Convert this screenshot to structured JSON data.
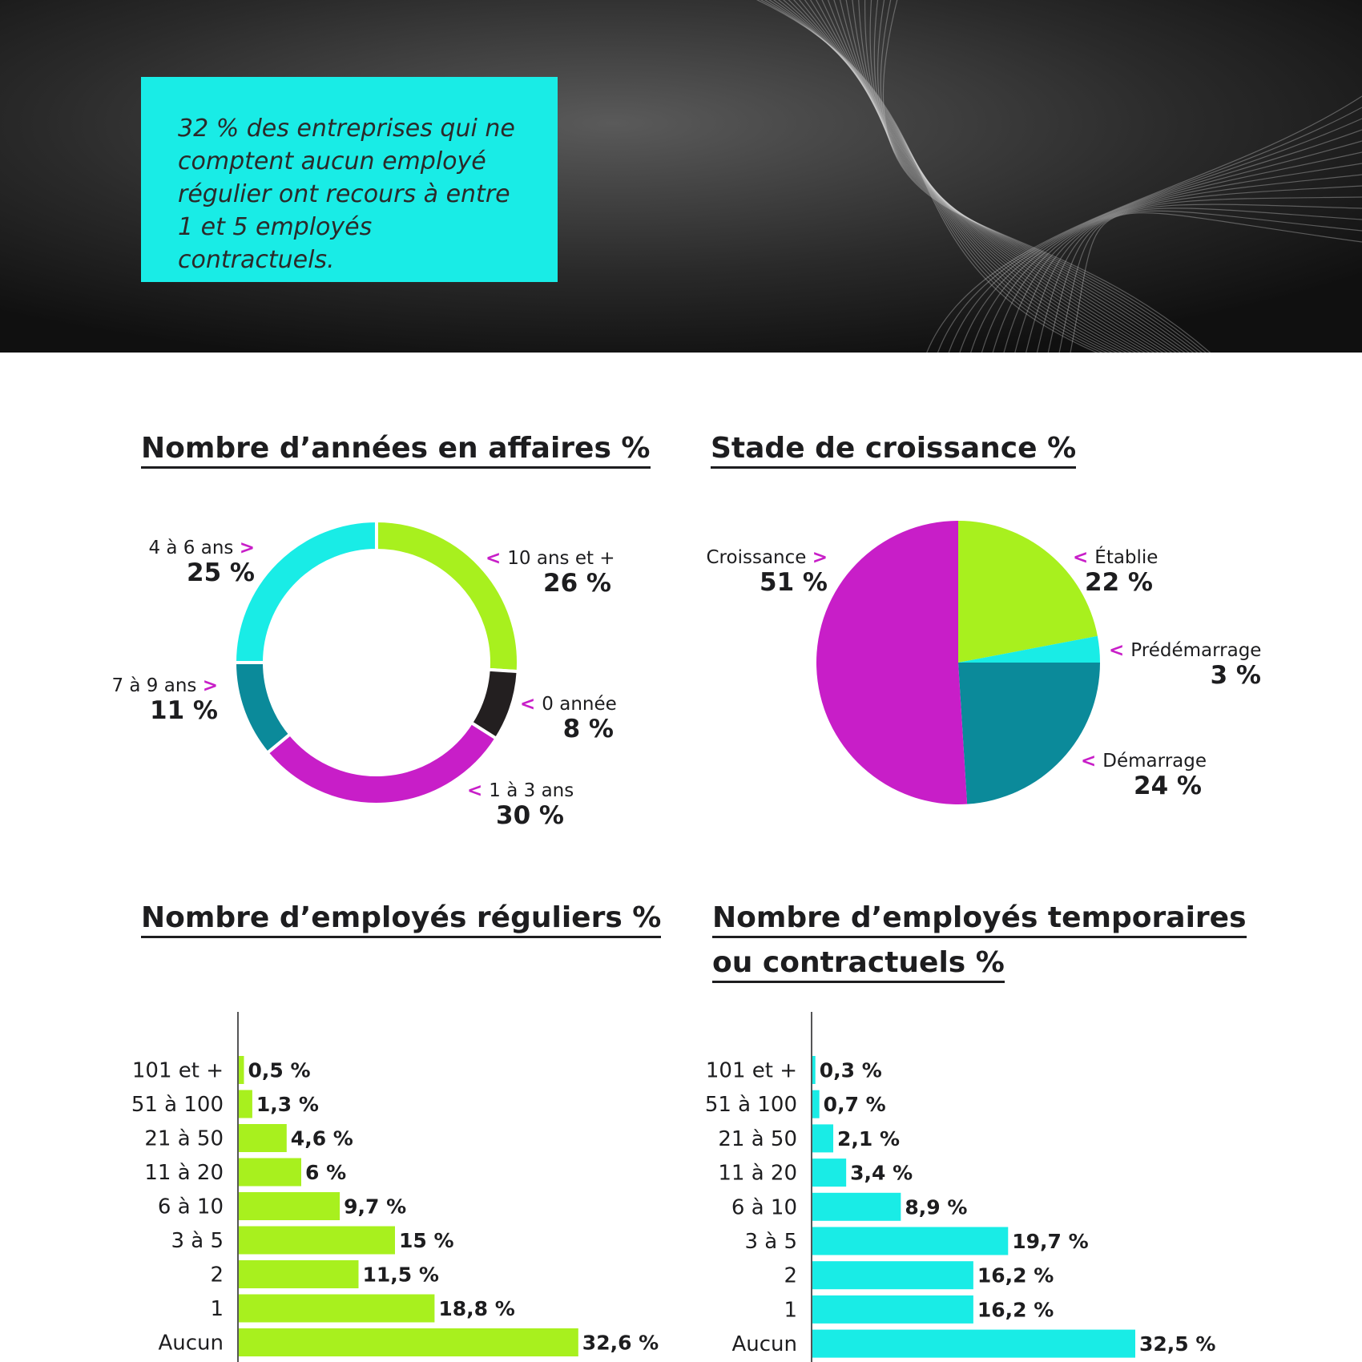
{
  "callout": {
    "text": "32 % des entreprises qui ne comptent aucun employé régulier ont recours à entre 1 et 5 employés contractuels.",
    "color": "#19ece6"
  },
  "colors": {
    "lime": "#a8f01e",
    "cyan": "#19ece6",
    "teal": "#0b8a9a",
    "magenta": "#c81ec8",
    "dark": "#231f20",
    "arrow": "#c81ec8"
  },
  "chart_data": [
    {
      "type": "pie",
      "variant": "donut",
      "title": "Nombre d’années en affaires %",
      "slices": [
        {
          "label": "10 ans et  +",
          "value": 26,
          "display": "26 %",
          "color": "#a8f01e"
        },
        {
          "label": "0 année",
          "value": 8,
          "display": "8 %",
          "color": "#231f20"
        },
        {
          "label": "1 à 3 ans",
          "value": 30,
          "display": "30 %",
          "color": "#c81ec8"
        },
        {
          "label": "7 à 9 ans",
          "value": 11,
          "display": "11 %",
          "color": "#0b8a9a"
        },
        {
          "label": "4 à 6 ans",
          "value": 25,
          "display": "25 %",
          "color": "#19ece6"
        }
      ]
    },
    {
      "type": "pie",
      "title": "Stade de croissance %",
      "slices": [
        {
          "label": "Établie",
          "value": 22,
          "display": "22 %",
          "color": "#a8f01e"
        },
        {
          "label": "Prédémarrage",
          "value": 3,
          "display": "3 %",
          "color": "#19ece6"
        },
        {
          "label": "Démarrage",
          "value": 24,
          "display": "24 %",
          "color": "#0b8a9a"
        },
        {
          "label": "Croissance",
          "value": 51,
          "display": "51 %",
          "color": "#c81ec8"
        }
      ]
    },
    {
      "type": "bar",
      "orientation": "horizontal",
      "title": "Nombre d’employés réguliers %",
      "color": "#a8f01e",
      "categories": [
        "101 et +",
        "51 à 100",
        "21 à 50",
        "11 à 20",
        "6 à 10",
        "3 à 5",
        "2",
        "1",
        "Aucun"
      ],
      "values": [
        0.5,
        1.3,
        4.6,
        6,
        9.7,
        15,
        11.5,
        18.8,
        32.6
      ],
      "labels": [
        "0,5 %",
        "1,3 %",
        "4,6 %",
        "6 %",
        "9,7 %",
        "15 %",
        "11,5 %",
        "18,8 %",
        "32,6 %"
      ]
    },
    {
      "type": "bar",
      "orientation": "horizontal",
      "title": "Nombre d’employés temporaires ou contractuels %",
      "title_lines": [
        "Nombre d’employés temporaires",
        "ou contractuels %"
      ],
      "color": "#19ece6",
      "categories": [
        "101 et +",
        "51 à 100",
        "21 à 50",
        "11 à 20",
        "6 à 10",
        "3 à 5",
        "2",
        "1",
        "Aucun"
      ],
      "values": [
        0.3,
        0.7,
        2.1,
        3.4,
        8.9,
        19.7,
        16.2,
        16.2,
        32.5
      ],
      "labels": [
        "0,3 %",
        "0,7 %",
        "2,1 %",
        "3,4 %",
        "8,9 %",
        "19,7 %",
        "16,2 %",
        "16,2 %",
        "32,5 %"
      ]
    }
  ]
}
